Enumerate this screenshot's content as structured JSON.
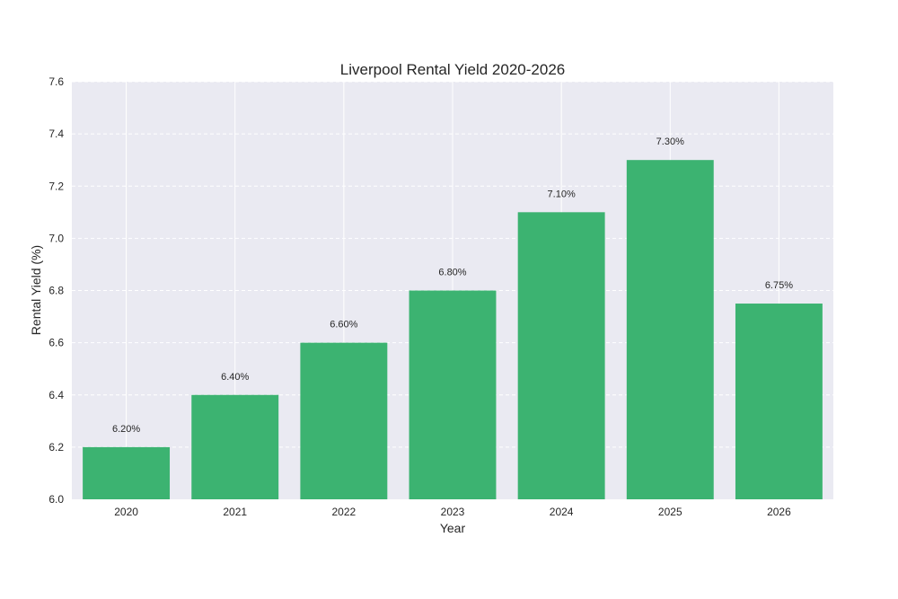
{
  "chart_data": {
    "type": "bar",
    "title": "Liverpool Rental Yield 2020-2026",
    "xlabel": "Year",
    "ylabel": "Rental Yield (%)",
    "categories": [
      "2020",
      "2021",
      "2022",
      "2023",
      "2024",
      "2025",
      "2026"
    ],
    "values": [
      6.2,
      6.4,
      6.6,
      6.8,
      7.1,
      7.3,
      6.75
    ],
    "data_labels": [
      "6.20%",
      "6.40%",
      "6.60%",
      "6.80%",
      "7.10%",
      "7.30%",
      "6.75%"
    ],
    "ylim": [
      6.0,
      7.6
    ],
    "yticks": [
      6.0,
      6.2,
      6.4,
      6.6,
      6.8,
      7.0,
      7.2,
      7.4,
      7.6
    ],
    "ytick_labels": [
      "6.0",
      "6.2",
      "6.4",
      "6.6",
      "6.8",
      "7.0",
      "7.2",
      "7.4",
      "7.6"
    ],
    "grid": true,
    "legend": "none",
    "colors": {
      "bar": "#3cb371",
      "plot_background": "#eaeaf2",
      "grid": "#ffffff",
      "text": "#262626"
    }
  }
}
